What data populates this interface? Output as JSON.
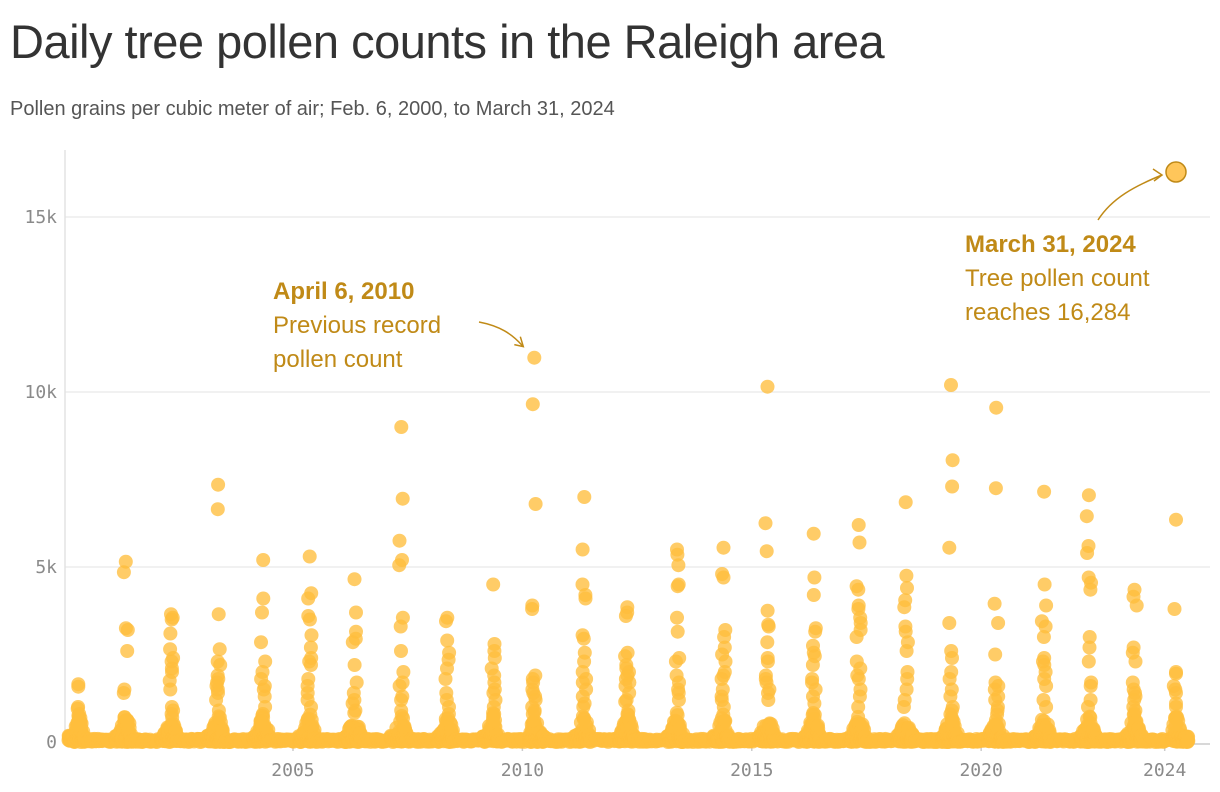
{
  "title": "Daily tree pollen counts in the Raleigh area",
  "subtitle": "Pollen grains per cubic meter of air; Feb. 6, 2000, to March 31, 2024",
  "colors": {
    "point": "#FFBE3C",
    "annotation": "#C08A17",
    "grid": "#e3e3e3",
    "axis_text": "#8a8a8a",
    "record_point": "#FFC65A",
    "record_stroke": "#C08A17"
  },
  "chart_data": {
    "type": "scatter",
    "title": "Daily tree pollen counts in the Raleigh area",
    "subtitle": "Pollen grains per cubic meter of air; Feb. 6, 2000, to March 31, 2024",
    "xlabel": "",
    "ylabel": "",
    "xlim": [
      "2000-02-06",
      "2024-03-31"
    ],
    "ylim": [
      0,
      16800
    ],
    "grid": "horizontal",
    "x_ticks": [
      {
        "date": "2005-01-01",
        "label": "2005"
      },
      {
        "date": "2010-01-01",
        "label": "2010"
      },
      {
        "date": "2015-01-01",
        "label": "2015"
      },
      {
        "date": "2020-01-01",
        "label": "2020"
      },
      {
        "date": "2024-01-01",
        "label": "2024"
      }
    ],
    "y_ticks": [
      {
        "value": 0,
        "label": "0"
      },
      {
        "value": 5000,
        "label": "5k"
      },
      {
        "value": 10000,
        "label": "10k"
      },
      {
        "value": 15000,
        "label": "15k"
      }
    ],
    "seasons": [
      {
        "year": 2000,
        "start": "2000-02-10",
        "peak_day": 78,
        "top": [
          1650,
          1580,
          1000,
          950,
          800,
          700,
          600,
          500
        ]
      },
      {
        "year": 2001,
        "start": "2001-02-15",
        "peak_day": 85,
        "top": [
          5150,
          4850,
          3250,
          3200,
          2600,
          1500,
          1400,
          700,
          600
        ]
      },
      {
        "year": 2002,
        "start": "2002-02-15",
        "peak_day": 80,
        "top": [
          3650,
          3550,
          3500,
          3100,
          2650,
          2400,
          2300,
          2100,
          2000,
          1750,
          1500,
          1000,
          900,
          800
        ]
      },
      {
        "year": 2003,
        "start": "2003-02-15",
        "peak_day": 90,
        "top": [
          7350,
          6650,
          3650,
          2650,
          2300,
          2200,
          1900,
          1800,
          1700,
          1600,
          1500,
          1400,
          1200,
          900,
          700
        ]
      },
      {
        "year": 2004,
        "start": "2004-02-15",
        "peak_day": 84,
        "top": [
          5200,
          4100,
          3700,
          2850,
          2300,
          2000,
          1800,
          1600,
          1500,
          1300,
          1000,
          800,
          600
        ]
      },
      {
        "year": 2005,
        "start": "2005-02-15",
        "peak_day": 88,
        "top": [
          5300,
          4250,
          4100,
          3600,
          3500,
          3050,
          2700,
          2400,
          2300,
          2200,
          1800,
          1600,
          1400,
          1200,
          1000
        ]
      },
      {
        "year": 2006,
        "start": "2006-02-15",
        "peak_day": 80,
        "top": [
          4650,
          3700,
          3150,
          2950,
          2850,
          2200,
          1700,
          1400,
          1200,
          1100,
          900
        ]
      },
      {
        "year": 2007,
        "start": "2007-02-15",
        "peak_day": 87,
        "top": [
          9000,
          6950,
          5750,
          5200,
          5050,
          3550,
          3300,
          2600,
          2000,
          1700,
          1600,
          1300,
          1200,
          900
        ]
      },
      {
        "year": 2008,
        "start": "2008-02-18",
        "peak_day": 85,
        "top": [
          3550,
          3450,
          2900,
          2550,
          2350,
          2100,
          1800,
          1400,
          1200,
          1000,
          800
        ]
      },
      {
        "year": 2009,
        "start": "2009-02-18",
        "peak_day": 85,
        "top": [
          4500,
          2800,
          2600,
          2400,
          2100,
          1900,
          1700,
          1500,
          1400,
          1200,
          1000,
          800,
          700
        ]
      },
      {
        "year": 2010,
        "start": "2010-02-20",
        "peak_day": 45,
        "top": [
          10980,
          9650,
          6800,
          3900,
          3800,
          1900,
          1800,
          1700,
          1500,
          1400,
          1300,
          1200,
          1000,
          900,
          800
        ]
      },
      {
        "year": 2011,
        "start": "2011-02-18",
        "peak_day": 80,
        "top": [
          7000,
          5500,
          4500,
          4200,
          4100,
          3050,
          2950,
          2550,
          2300,
          2000,
          1800,
          1700,
          1500,
          1300,
          1100,
          1000
        ]
      },
      {
        "year": 2012,
        "start": "2012-02-05",
        "peak_day": 70,
        "top": [
          3850,
          3700,
          3600,
          2550,
          2450,
          2200,
          2100,
          2000,
          1900,
          1800,
          1700,
          1600,
          1400,
          1200,
          1150,
          900
        ]
      },
      {
        "year": 2013,
        "start": "2013-02-25",
        "peak_day": 80,
        "top": [
          5500,
          5350,
          5050,
          4500,
          4450,
          3550,
          3150,
          2400,
          2300,
          1900,
          1700,
          1500,
          1400,
          1200
        ]
      },
      {
        "year": 2014,
        "start": "2014-02-25",
        "peak_day": 85,
        "top": [
          5550,
          4800,
          4700,
          3200,
          3000,
          2700,
          2500,
          2300,
          2000,
          1900,
          1800,
          1500,
          1300,
          1200,
          1000
        ]
      },
      {
        "year": 2015,
        "start": "2015-02-25",
        "peak_day": 70,
        "top": [
          10150,
          6250,
          5450,
          3750,
          3350,
          3300,
          2850,
          2400,
          2300,
          1900,
          1800,
          1700,
          1500,
          1400,
          1200
        ]
      },
      {
        "year": 2016,
        "start": "2016-02-20",
        "peak_day": 78,
        "top": [
          5950,
          4700,
          4200,
          3250,
          3150,
          2750,
          2550,
          2450,
          2200,
          1800,
          1700,
          1500,
          1300,
          1100
        ]
      },
      {
        "year": 2017,
        "start": "2017-02-15",
        "peak_day": 75,
        "top": [
          6200,
          5700,
          4450,
          4350,
          3900,
          3800,
          3550,
          3400,
          3200,
          3000,
          2300,
          2100,
          1900,
          1800,
          1500,
          1300,
          1000
        ]
      },
      {
        "year": 2018,
        "start": "2018-03-01",
        "peak_day": 70,
        "top": [
          6850,
          4750,
          4400,
          4050,
          3850,
          3300,
          3150,
          2850,
          2600,
          2000,
          1800,
          1500,
          1200,
          1000
        ]
      },
      {
        "year": 2019,
        "start": "2019-02-20",
        "peak_day": 75,
        "top": [
          10200,
          8050,
          7300,
          5550,
          3400,
          2600,
          2400,
          2000,
          1800,
          1500,
          1300,
          1000,
          900
        ]
      },
      {
        "year": 2020,
        "start": "2020-02-20",
        "peak_day": 70,
        "top": [
          9550,
          7250,
          3950,
          3400,
          2500,
          1700,
          1600,
          1500,
          1300,
          1200,
          1000,
          900
        ]
      },
      {
        "year": 2021,
        "start": "2021-02-25",
        "peak_day": 80,
        "top": [
          7150,
          4500,
          3900,
          3450,
          3300,
          3000,
          2400,
          2300,
          2200,
          2000,
          1800,
          1600,
          1200,
          1000
        ]
      },
      {
        "year": 2022,
        "start": "2022-02-25",
        "peak_day": 72,
        "top": [
          7050,
          6450,
          5600,
          5400,
          4700,
          4550,
          4350,
          3000,
          2700,
          2300,
          1700,
          1600,
          1200,
          1000
        ]
      },
      {
        "year": 2023,
        "start": "2023-02-25",
        "peak_day": 70,
        "top": [
          4350,
          4150,
          3900,
          2700,
          2550,
          2300,
          1700,
          1500,
          1400,
          1300,
          1200,
          1000,
          900
        ]
      },
      {
        "year": 2024,
        "start": "2024-02-28",
        "peak_day": 32,
        "top": [
          6350,
          3800,
          2000,
          1950,
          1600,
          1500,
          1400,
          1100,
          1000,
          700,
          500
        ]
      }
    ],
    "record_point": {
      "date": "2024-03-31",
      "value": 16284
    },
    "annotations": [
      {
        "id": "2010",
        "date": "2010-04-06",
        "value": 10980,
        "heading": "April 6, 2010",
        "lines": [
          "Previous record",
          "pollen count"
        ]
      },
      {
        "id": "2024",
        "date": "2024-03-31",
        "value": 16284,
        "heading": "March 31, 2024",
        "lines": [
          "Tree pollen count",
          "reaches 16,284"
        ]
      }
    ]
  }
}
